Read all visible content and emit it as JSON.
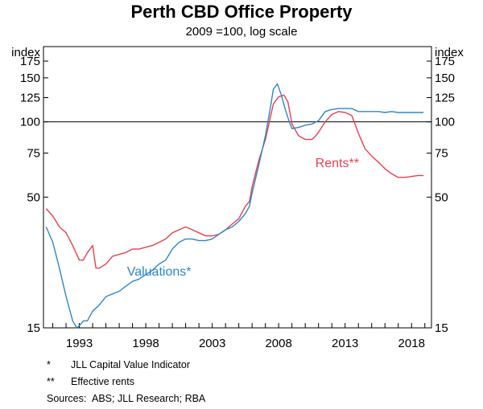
{
  "chart_data": {
    "type": "line",
    "title": "Perth CBD Office Property",
    "subtitle": "2009 =100, log scale",
    "left_unit": "index",
    "right_unit": "index",
    "scale": "log",
    "ylim": [
      15,
      200
    ],
    "xlim": [
      1990.3,
      2019.5
    ],
    "y_ticks": [
      15,
      50,
      75,
      100,
      125,
      150,
      175
    ],
    "x_ticks": [
      1993,
      1998,
      2003,
      2008,
      2013,
      2018
    ],
    "reference_line": 100,
    "grid": false,
    "series": [
      {
        "name": "Rents**",
        "color": "#e8404d",
        "x": [
          1990.5,
          1991.0,
          1991.5,
          1992.0,
          1992.5,
          1993.0,
          1993.3,
          1993.6,
          1994.0,
          1994.25,
          1994.5,
          1995.0,
          1995.5,
          1996.0,
          1996.5,
          1997.0,
          1997.5,
          1998.0,
          1998.5,
          1999.0,
          1999.5,
          2000.0,
          2000.5,
          2001.0,
          2001.5,
          2002.0,
          2002.5,
          2003.0,
          2003.5,
          2004.0,
          2004.5,
          2005.0,
          2005.5,
          2005.8,
          2006.0,
          2006.5,
          2007.0,
          2007.3,
          2007.6,
          2008.0,
          2008.4,
          2008.7,
          2009.0,
          2009.5,
          2010.0,
          2010.5,
          2010.8,
          2011.0,
          2011.5,
          2012.0,
          2012.5,
          2013.0,
          2013.5,
          2014.0,
          2014.5,
          2015.0,
          2015.5,
          2016.0,
          2016.5,
          2017.0,
          2017.5,
          2018.0,
          2018.5,
          2018.9
        ],
        "y": [
          45,
          42,
          38,
          36,
          32,
          28,
          28,
          30,
          32,
          26,
          26,
          27,
          29,
          29.5,
          30,
          31,
          31,
          31.5,
          32,
          33,
          34,
          36,
          37,
          38,
          37,
          36,
          35,
          35,
          35.5,
          37,
          39,
          41,
          46,
          48,
          55,
          70,
          85,
          100,
          118,
          126,
          128,
          120,
          98,
          88,
          85,
          85,
          88,
          91,
          100,
          107,
          110,
          109,
          106,
          90,
          78,
          73,
          69,
          65,
          62,
          60,
          60,
          60.5,
          61,
          61
        ]
      },
      {
        "name": "Valuations*",
        "color": "#2e86c8",
        "x": [
          1990.5,
          1991.0,
          1991.5,
          1992.0,
          1992.5,
          1992.8,
          1993.0,
          1993.3,
          1993.6,
          1994.0,
          1994.5,
          1995.0,
          1995.5,
          1996.0,
          1996.5,
          1997.0,
          1997.5,
          1998.0,
          1998.5,
          1999.0,
          1999.5,
          2000.0,
          2000.5,
          2001.0,
          2001.5,
          2002.0,
          2002.5,
          2003.0,
          2003.5,
          2004.0,
          2004.5,
          2005.0,
          2005.5,
          2005.8,
          2006.0,
          2006.5,
          2007.0,
          2007.3,
          2007.6,
          2007.9,
          2008.2,
          2008.5,
          2008.8,
          2009.0,
          2009.5,
          2010.0,
          2010.5,
          2011.0,
          2011.5,
          2012.0,
          2012.5,
          2013.0,
          2013.5,
          2014.0,
          2014.5,
          2015.0,
          2015.5,
          2016.0,
          2016.5,
          2017.0,
          2017.5,
          2018.0,
          2018.5,
          2018.9
        ],
        "y": [
          38,
          33,
          26,
          20,
          16,
          15,
          15.3,
          16,
          16,
          17.5,
          18.5,
          20,
          20.5,
          21,
          22,
          23,
          23.5,
          24.5,
          25.5,
          27,
          28,
          31,
          33,
          34,
          34,
          33.5,
          33.5,
          34,
          35.5,
          37,
          38,
          40,
          43,
          46,
          52,
          67,
          88,
          108,
          135,
          142,
          128,
          112,
          100,
          94,
          95,
          97,
          98,
          101,
          110,
          112,
          113,
          113,
          113,
          110,
          110,
          110,
          110,
          109,
          110,
          109,
          109,
          109,
          109,
          109
        ]
      }
    ],
    "annotations": [
      {
        "text": "Valuations*",
        "color": "#2e86c8",
        "x": 1999.0,
        "y": 24.3
      },
      {
        "text": "Rents**",
        "color": "#e8404d",
        "x": 2012.4,
        "y": 65.8
      }
    ]
  },
  "notes": [
    {
      "mark": "*",
      "text": "JLL Capital Value Indicator"
    },
    {
      "mark": "**",
      "text": "Effective rents"
    }
  ],
  "sources": {
    "label": "Sources:",
    "text": "ABS; JLL Research; RBA"
  }
}
